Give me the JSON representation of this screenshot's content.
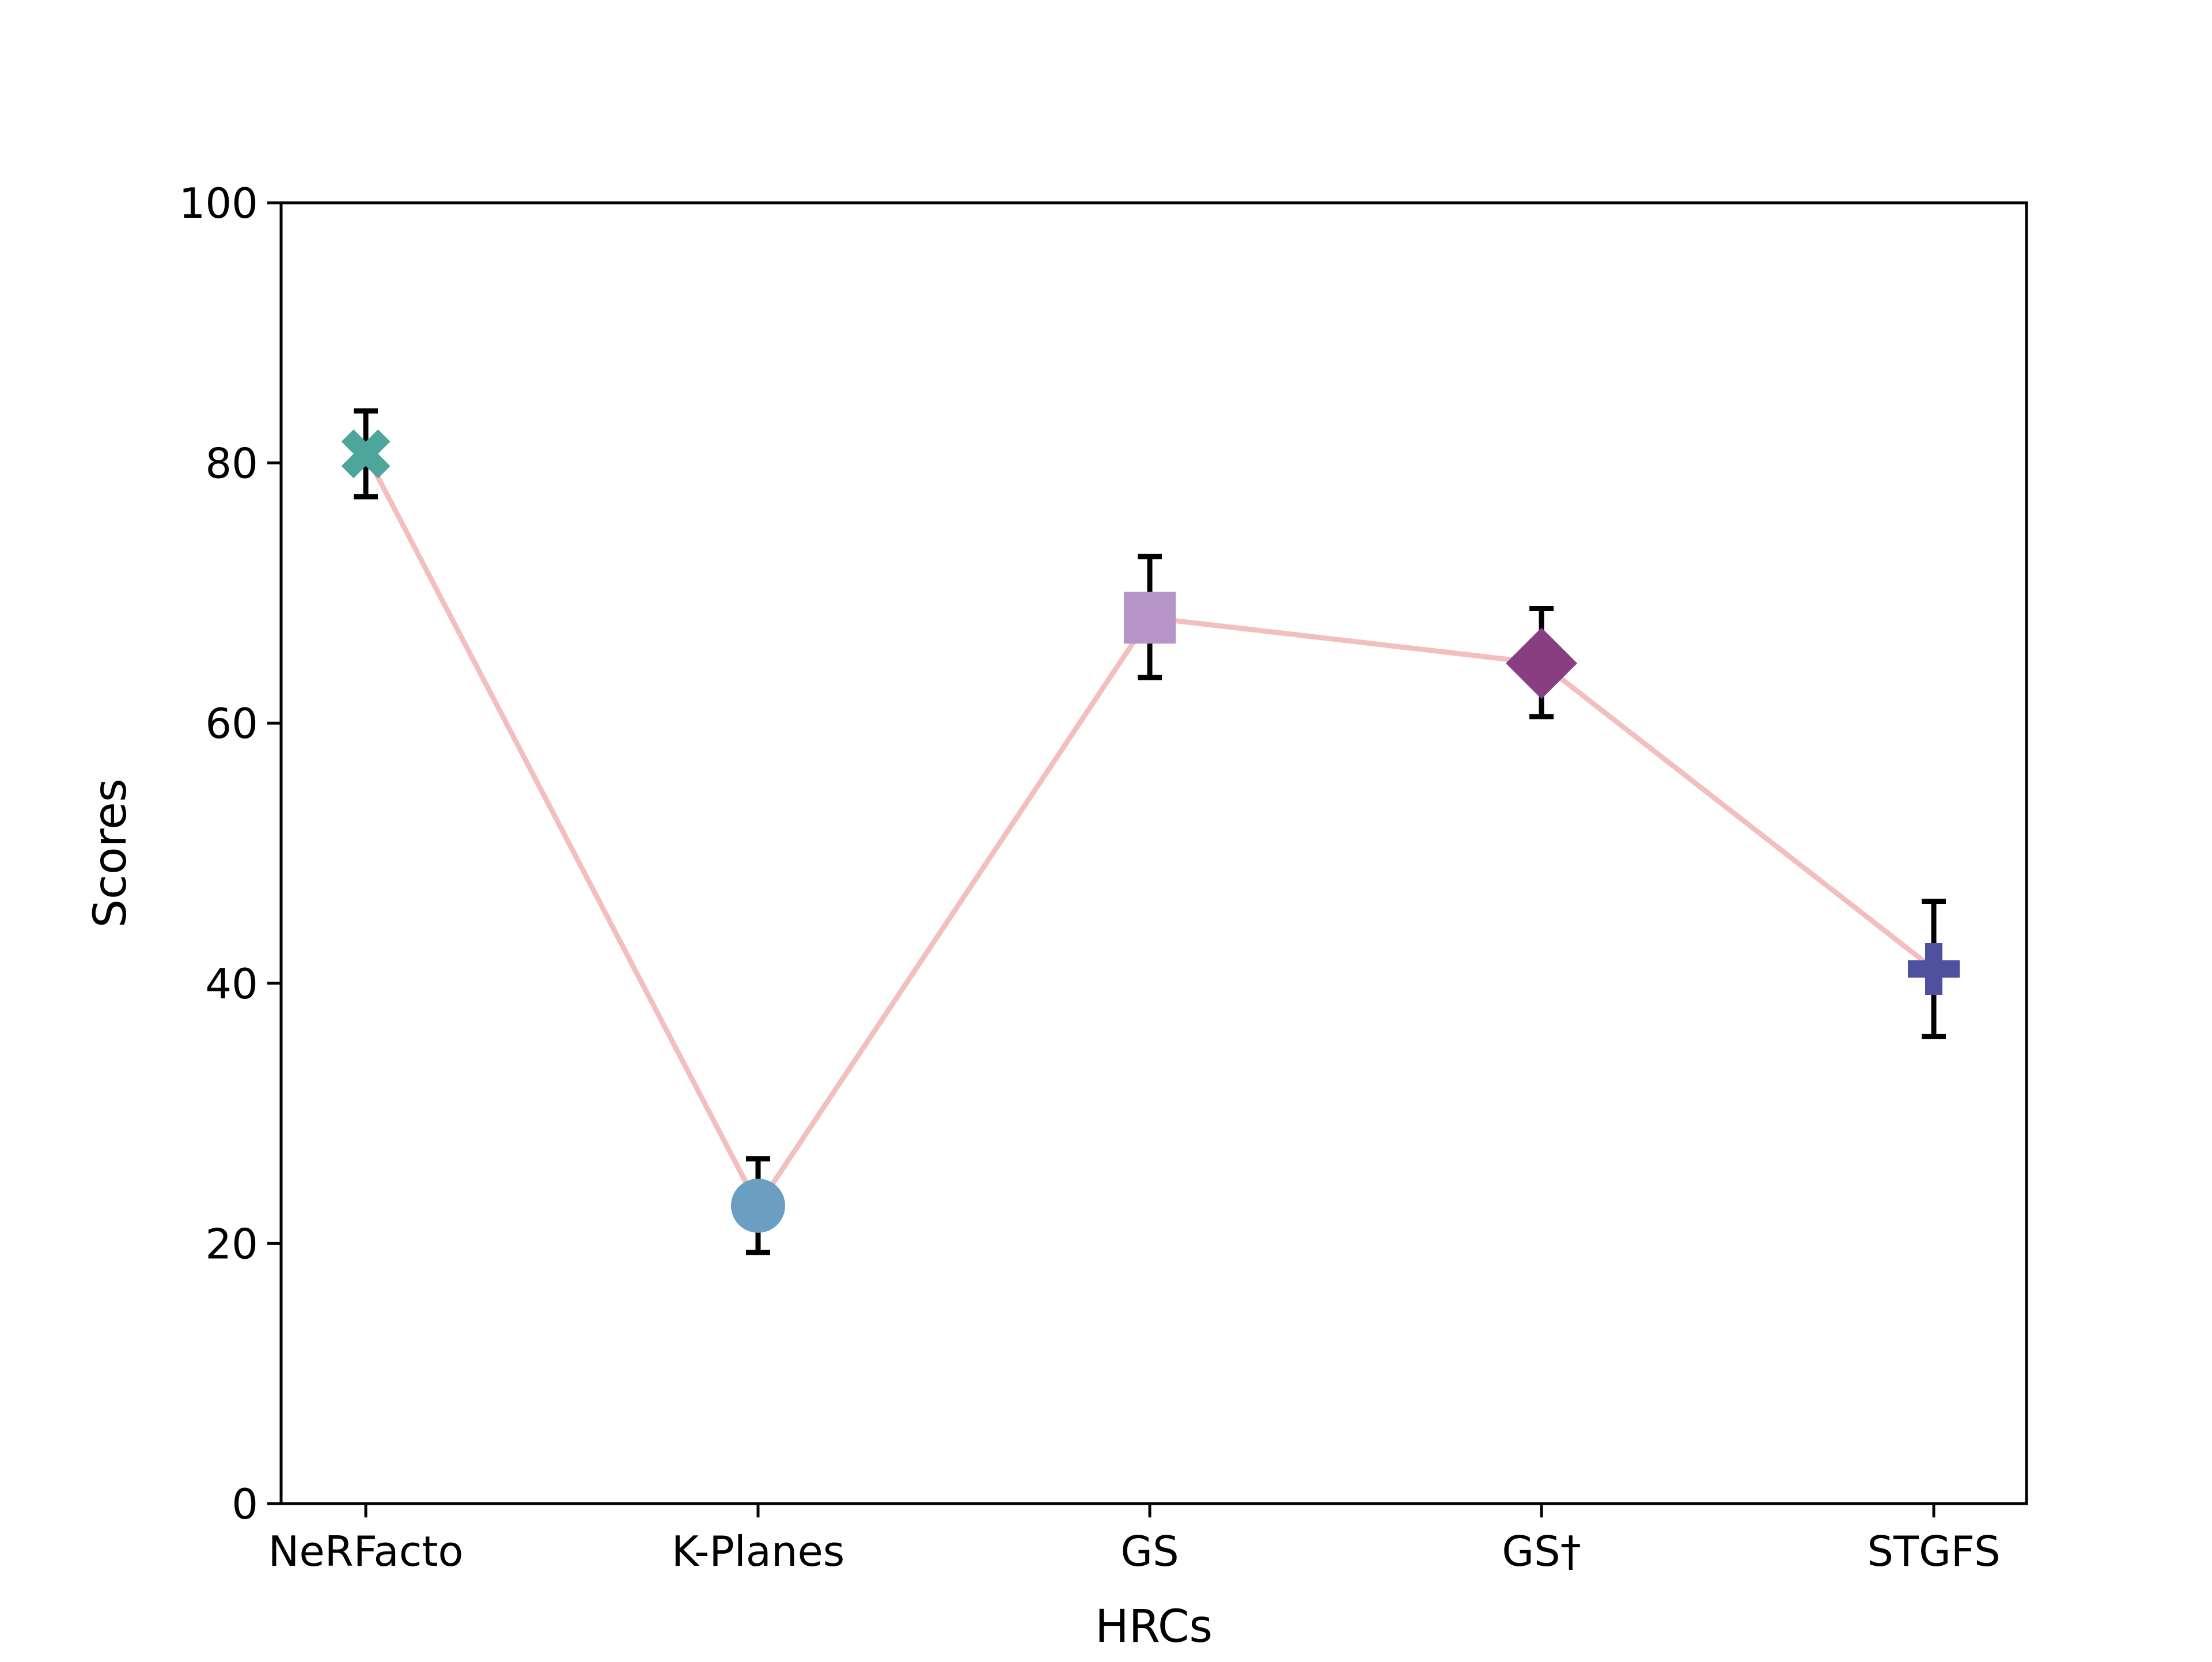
{
  "chart_data": {
    "type": "line",
    "title": "",
    "xlabel": "HRCs",
    "ylabel": "Scores",
    "ylim": [
      0,
      100
    ],
    "yticks": [
      0,
      20,
      40,
      60,
      80,
      100
    ],
    "grid": false,
    "legend": "none",
    "categories": [
      "NeRFacto",
      "K-Planes",
      "GS",
      "GS†",
      "STGFS"
    ],
    "series": [
      {
        "name": "Scores",
        "line_color": "#F2BEBE",
        "values": [
          80.7,
          22.9,
          68.1,
          64.6,
          41.1
        ],
        "error_low": [
          77.4,
          19.3,
          63.5,
          60.5,
          35.9
        ],
        "error_high": [
          84.0,
          26.5,
          72.8,
          68.8,
          46.3
        ],
        "markers": [
          {
            "shape": "x-filled-icon",
            "color": "#4DA59C"
          },
          {
            "shape": "circle-icon",
            "color": "#6A9FC2"
          },
          {
            "shape": "square-icon",
            "color": "#B895C8"
          },
          {
            "shape": "diamond-icon",
            "color": "#8A3E82"
          },
          {
            "shape": "plus-filled-icon",
            "color": "#5050A0"
          }
        ]
      }
    ]
  }
}
